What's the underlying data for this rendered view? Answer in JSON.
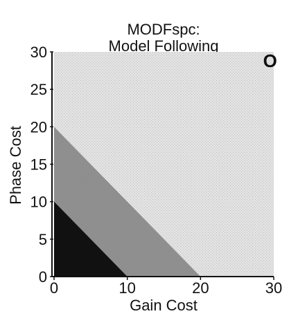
{
  "chart_data": {
    "type": "area",
    "title": "MODFspc:",
    "subtitle": "Model Following",
    "xlabel": "Gain Cost",
    "ylabel": "Phase Cost",
    "xlim": [
      0,
      30
    ],
    "ylim": [
      0,
      30
    ],
    "xticks": [
      "0",
      "10",
      "20",
      "30"
    ],
    "yticks": [
      "0",
      "5",
      "10",
      "15",
      "20",
      "25",
      "30"
    ],
    "grid": false,
    "regions": [
      {
        "level": 3,
        "color": "#d8d8d8",
        "points": [
          [
            0,
            0
          ],
          [
            30,
            0
          ],
          [
            30,
            30
          ],
          [
            0,
            30
          ]
        ]
      },
      {
        "level": 2,
        "color": "#8a8a8a",
        "points": [
          [
            0,
            0
          ],
          [
            20,
            0
          ],
          [
            0,
            20
          ]
        ]
      },
      {
        "level": 1,
        "color": "#111111",
        "points": [
          [
            0,
            0
          ],
          [
            10,
            0
          ],
          [
            0,
            10
          ]
        ]
      }
    ],
    "annotations": [
      {
        "text": "O",
        "x": 29.5,
        "y": 28.8
      }
    ]
  }
}
